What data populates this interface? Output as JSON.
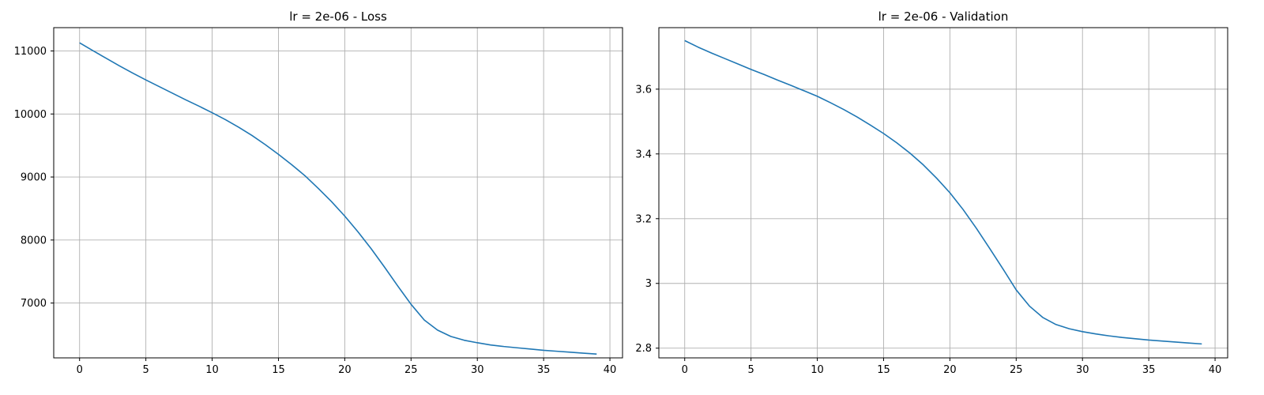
{
  "chart_data": [
    {
      "type": "line",
      "title": "lr = 2e-06 - Loss",
      "xlabel": "",
      "ylabel": "",
      "grid": true,
      "xlim": [
        -1.95,
        40.95
      ],
      "ylim": [
        6130,
        11370
      ],
      "xticks": [
        0,
        5,
        10,
        15,
        20,
        25,
        30,
        35,
        40
      ],
      "yticks": [
        7000,
        8000,
        9000,
        10000,
        11000
      ],
      "color": "#1f77b4",
      "series": [
        {
          "x": [
            0,
            1,
            2,
            3,
            4,
            5,
            6,
            7,
            8,
            9,
            10,
            11,
            12,
            13,
            14,
            15,
            16,
            17,
            18,
            19,
            20,
            21,
            22,
            23,
            24,
            25,
            26,
            27,
            28,
            29,
            30,
            31,
            32,
            33,
            34,
            35,
            36,
            37,
            38,
            39
          ],
          "values": [
            11130,
            11005,
            10885,
            10765,
            10650,
            10540,
            10435,
            10330,
            10225,
            10125,
            10020,
            9910,
            9790,
            9660,
            9515,
            9360,
            9195,
            9020,
            8820,
            8610,
            8380,
            8130,
            7860,
            7570,
            7270,
            6980,
            6730,
            6570,
            6470,
            6410,
            6370,
            6335,
            6310,
            6290,
            6270,
            6250,
            6235,
            6220,
            6205,
            6190
          ]
        }
      ]
    },
    {
      "type": "line",
      "title": "lr = 2e-06 - Validation",
      "xlabel": "",
      "ylabel": "",
      "grid": true,
      "xlim": [
        -1.95,
        40.95
      ],
      "ylim": [
        2.77,
        3.79
      ],
      "xticks": [
        0,
        5,
        10,
        15,
        20,
        25,
        30,
        35,
        40
      ],
      "yticks": [
        2.8,
        3.0,
        3.2,
        3.4,
        3.6
      ],
      "color": "#1f77b4",
      "series": [
        {
          "x": [
            0,
            1,
            2,
            3,
            4,
            5,
            6,
            7,
            8,
            9,
            10,
            11,
            12,
            13,
            14,
            15,
            16,
            17,
            18,
            19,
            20,
            21,
            22,
            23,
            24,
            25,
            26,
            27,
            28,
            29,
            30,
            31,
            32,
            33,
            34,
            35,
            36,
            37,
            38,
            39
          ],
          "values": [
            3.75,
            3.73,
            3.712,
            3.695,
            3.678,
            3.661,
            3.645,
            3.628,
            3.612,
            3.595,
            3.578,
            3.558,
            3.537,
            3.514,
            3.489,
            3.463,
            3.434,
            3.402,
            3.366,
            3.325,
            3.28,
            3.228,
            3.17,
            3.108,
            3.045,
            2.98,
            2.93,
            2.895,
            2.873,
            2.86,
            2.851,
            2.844,
            2.838,
            2.833,
            2.829,
            2.825,
            2.822,
            2.819,
            2.816,
            2.813
          ]
        }
      ]
    }
  ]
}
